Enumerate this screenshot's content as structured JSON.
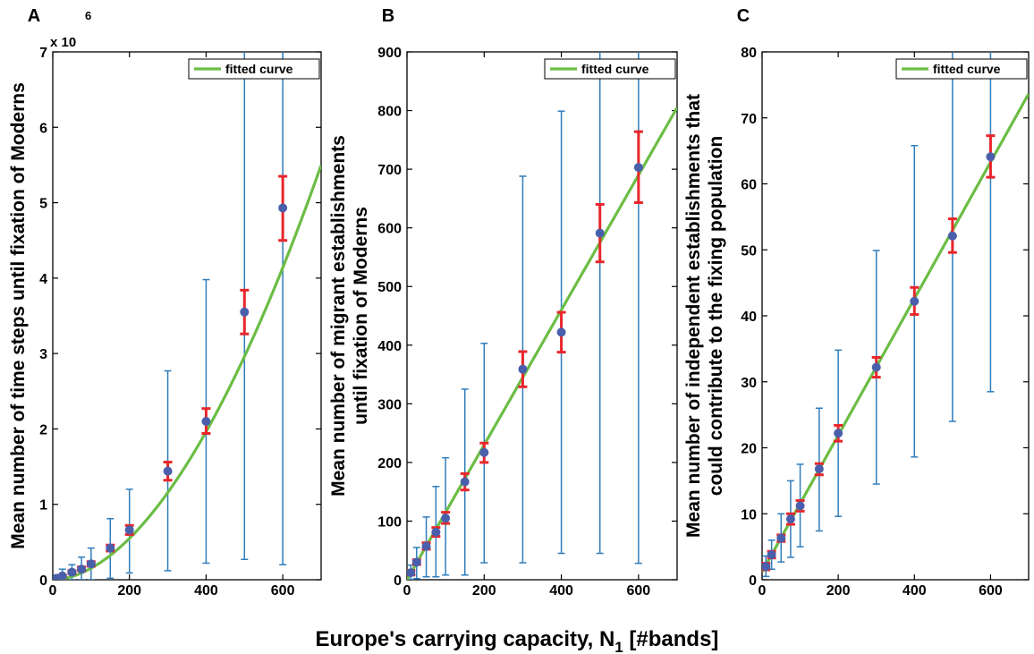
{
  "figure": {
    "xlabel_main": "Europe's carrying capacity, N",
    "xlabel_sub": "1",
    "xlabel_tail": " [#bands]"
  },
  "colors": {
    "fit": "#6cbd45",
    "bar_outer": "#2f7dbb",
    "bar_inner": "#e8262b",
    "point": "#4a5fab",
    "axis": "#000000"
  },
  "chart_data": [
    {
      "type": "scatter",
      "panel_label": "A",
      "ylabel": [
        "Mean number of time steps until fixation of Moderns"
      ],
      "y_multiplier": {
        "base": "x 10",
        "exponent": "6"
      },
      "xlim": [
        0,
        700
      ],
      "ylim": [
        0,
        7
      ],
      "xticks": [
        0,
        200,
        400,
        600
      ],
      "xtick_labels": [
        "0",
        "200",
        "400",
        "600"
      ],
      "yticks": [
        0,
        1,
        2,
        3,
        4,
        5,
        6,
        7
      ],
      "ytick_labels": [
        "0",
        "1",
        "2",
        "3",
        "4",
        "5",
        "6",
        "7"
      ],
      "legend": {
        "label": "fitted curve",
        "placement": "top-right"
      },
      "grid": false,
      "points": [
        {
          "x": 10,
          "y": 0.02,
          "lo": 0.0,
          "hi": 0.06,
          "mlo": 0.01,
          "mhi": 0.03
        },
        {
          "x": 25,
          "y": 0.05,
          "lo": 0.0,
          "hi": 0.14,
          "mlo": 0.04,
          "mhi": 0.06
        },
        {
          "x": 50,
          "y": 0.1,
          "lo": 0.0,
          "hi": 0.2,
          "mlo": 0.08,
          "mhi": 0.12
        },
        {
          "x": 75,
          "y": 0.14,
          "lo": 0.0,
          "hi": 0.3,
          "mlo": 0.12,
          "mhi": 0.17
        },
        {
          "x": 100,
          "y": 0.21,
          "lo": 0.0,
          "hi": 0.42,
          "mlo": 0.18,
          "mhi": 0.24
        },
        {
          "x": 150,
          "y": 0.42,
          "lo": 0.02,
          "hi": 0.81,
          "mlo": 0.38,
          "mhi": 0.46
        },
        {
          "x": 200,
          "y": 0.66,
          "lo": 0.09,
          "hi": 1.2,
          "mlo": 0.6,
          "mhi": 0.72
        },
        {
          "x": 300,
          "y": 1.44,
          "lo": 0.12,
          "hi": 2.77,
          "mlo": 1.32,
          "mhi": 1.56
        },
        {
          "x": 400,
          "y": 2.1,
          "lo": 0.22,
          "hi": 3.98,
          "mlo": 1.94,
          "mhi": 2.27
        },
        {
          "x": 500,
          "y": 3.55,
          "lo": 0.27,
          "hi": 7.0,
          "mlo": 3.26,
          "mhi": 3.84
        },
        {
          "x": 600,
          "y": 4.93,
          "lo": 0.2,
          "hi": 7.0,
          "mlo": 4.5,
          "mhi": 5.35
        }
      ],
      "fit": {
        "model": "power",
        "a": 3.2e-05,
        "b": 1.84
      }
    },
    {
      "type": "scatter",
      "panel_label": "B",
      "ylabel": [
        "Mean number of migrant establishments",
        "until fixation of Moderns"
      ],
      "xlim": [
        0,
        700
      ],
      "ylim": [
        0,
        900
      ],
      "xticks": [
        0,
        200,
        400,
        600
      ],
      "xtick_labels": [
        "0",
        "200",
        "400",
        "600"
      ],
      "yticks": [
        0,
        100,
        200,
        300,
        400,
        500,
        600,
        700,
        800,
        900
      ],
      "ytick_labels": [
        "0",
        "100",
        "200",
        "300",
        "400",
        "500",
        "600",
        "700",
        "800",
        "900"
      ],
      "legend": {
        "label": "fitted curve",
        "placement": "top-right"
      },
      "grid": false,
      "points": [
        {
          "x": 10,
          "y": 12,
          "lo": 0,
          "hi": 25,
          "mlo": 8,
          "mhi": 16
        },
        {
          "x": 25,
          "y": 30,
          "lo": 2,
          "hi": 55,
          "mlo": 26,
          "mhi": 34
        },
        {
          "x": 50,
          "y": 57,
          "lo": 5,
          "hi": 107,
          "mlo": 52,
          "mhi": 63
        },
        {
          "x": 75,
          "y": 81,
          "lo": 5,
          "hi": 159,
          "mlo": 74,
          "mhi": 89
        },
        {
          "x": 100,
          "y": 105,
          "lo": 8,
          "hi": 208,
          "mlo": 96,
          "mhi": 115
        },
        {
          "x": 150,
          "y": 167,
          "lo": 8,
          "hi": 325,
          "mlo": 153,
          "mhi": 181
        },
        {
          "x": 200,
          "y": 217,
          "lo": 29,
          "hi": 403,
          "mlo": 200,
          "mhi": 233
        },
        {
          "x": 300,
          "y": 359,
          "lo": 29,
          "hi": 688,
          "mlo": 329,
          "mhi": 389
        },
        {
          "x": 400,
          "y": 422,
          "lo": 45,
          "hi": 799,
          "mlo": 388,
          "mhi": 456
        },
        {
          "x": 500,
          "y": 591,
          "lo": 45,
          "hi": 900,
          "mlo": 542,
          "mhi": 640
        },
        {
          "x": 600,
          "y": 703,
          "lo": 28,
          "hi": 900,
          "mlo": 643,
          "mhi": 764
        }
      ],
      "fit": {
        "model": "power",
        "a": 1.15,
        "b": 1.0
      }
    },
    {
      "type": "scatter",
      "panel_label": "C",
      "ylabel": [
        "Mean number of independent establishments that",
        "could contribute to the fixing population"
      ],
      "xlim": [
        0,
        700
      ],
      "ylim": [
        0,
        80
      ],
      "xticks": [
        0,
        200,
        400,
        600
      ],
      "xtick_labels": [
        "0",
        "200",
        "400",
        "600"
      ],
      "yticks": [
        0,
        10,
        20,
        30,
        40,
        50,
        60,
        70,
        80
      ],
      "ytick_labels": [
        "0",
        "10",
        "20",
        "30",
        "40",
        "50",
        "60",
        "70",
        "80"
      ],
      "legend": {
        "label": "fitted curve",
        "placement": "top-right"
      },
      "grid": false,
      "points": [
        {
          "x": 10,
          "y": 2.0,
          "lo": 0.5,
          "hi": 3.6,
          "mlo": 1.5,
          "mhi": 2.5
        },
        {
          "x": 25,
          "y": 3.8,
          "lo": 1.6,
          "hi": 6.0,
          "mlo": 3.3,
          "mhi": 4.3
        },
        {
          "x": 50,
          "y": 6.3,
          "lo": 2.7,
          "hi": 10.0,
          "mlo": 5.8,
          "mhi": 6.8
        },
        {
          "x": 75,
          "y": 9.2,
          "lo": 3.4,
          "hi": 15.0,
          "mlo": 8.4,
          "mhi": 10.0
        },
        {
          "x": 100,
          "y": 11.2,
          "lo": 5.0,
          "hi": 17.5,
          "mlo": 10.4,
          "mhi": 12.0
        },
        {
          "x": 150,
          "y": 16.8,
          "lo": 7.4,
          "hi": 26.0,
          "mlo": 15.9,
          "mhi": 17.6
        },
        {
          "x": 200,
          "y": 22.2,
          "lo": 9.6,
          "hi": 34.8,
          "mlo": 21.0,
          "mhi": 23.4
        },
        {
          "x": 300,
          "y": 32.2,
          "lo": 14.5,
          "hi": 49.9,
          "mlo": 30.7,
          "mhi": 33.7
        },
        {
          "x": 400,
          "y": 42.2,
          "lo": 18.6,
          "hi": 65.8,
          "mlo": 40.2,
          "mhi": 44.3
        },
        {
          "x": 500,
          "y": 52.1,
          "lo": 24.0,
          "hi": 80.0,
          "mlo": 49.6,
          "mhi": 54.7
        },
        {
          "x": 600,
          "y": 64.1,
          "lo": 28.5,
          "hi": 80.0,
          "mlo": 61.0,
          "mhi": 67.3
        }
      ],
      "fit": {
        "model": "linear",
        "m": 0.1035,
        "c": 1.2
      }
    }
  ]
}
